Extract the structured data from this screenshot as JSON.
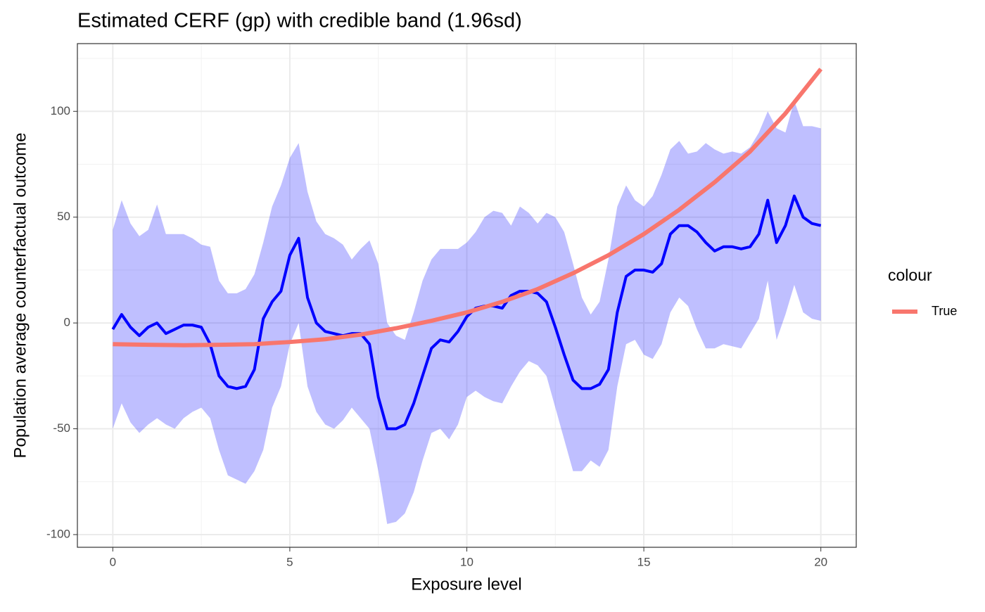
{
  "chart_data": {
    "type": "line",
    "title": "Estimated CERF (gp) with credible band (1.96sd)",
    "x_label": "Exposure level",
    "y_label": "Population average counterfactual outcome",
    "legend_title": "colour",
    "legend_position": "right",
    "grid": true,
    "xlim": [
      -1,
      21
    ],
    "xticks": [
      0,
      5,
      10,
      15,
      20
    ],
    "xminor": [
      2.5,
      7.5,
      12.5,
      17.5
    ],
    "ylim": [
      -106,
      132
    ],
    "yticks": [
      -100,
      -50,
      0,
      50,
      100
    ],
    "yminor": [
      -75,
      -25,
      25,
      75,
      125
    ],
    "band": {
      "color": "#0000ff",
      "x": [
        0,
        0.25,
        0.5,
        0.75,
        1,
        1.25,
        1.5,
        1.75,
        2,
        2.25,
        2.5,
        2.75,
        3,
        3.25,
        3.5,
        3.75,
        4,
        4.25,
        4.5,
        4.75,
        5,
        5.25,
        5.5,
        5.75,
        6,
        6.25,
        6.5,
        6.75,
        7,
        7.25,
        7.5,
        7.75,
        8,
        8.25,
        8.5,
        8.75,
        9,
        9.25,
        9.5,
        9.75,
        10,
        10.25,
        10.5,
        10.75,
        11,
        11.25,
        11.5,
        11.75,
        12,
        12.25,
        12.5,
        12.75,
        13,
        13.25,
        13.5,
        13.75,
        14,
        14.25,
        14.5,
        14.75,
        15,
        15.25,
        15.5,
        15.75,
        16,
        16.25,
        16.5,
        16.75,
        17,
        17.25,
        17.5,
        17.75,
        18,
        18.25,
        18.5,
        18.75,
        19,
        19.25,
        19.5,
        19.75,
        20
      ],
      "upper": [
        44,
        58,
        47,
        41,
        44,
        56,
        42,
        42,
        42,
        40,
        37,
        36,
        20,
        14,
        14,
        16,
        23,
        38,
        55,
        65,
        78,
        85,
        62,
        48,
        42,
        40,
        37,
        30,
        35,
        39,
        28,
        0,
        -6,
        -8,
        5,
        20,
        30,
        35,
        35,
        35,
        38,
        43,
        50,
        53,
        52,
        46,
        55,
        52,
        47,
        52,
        50,
        43,
        28,
        12,
        4,
        10,
        30,
        55,
        65,
        58,
        55,
        60,
        70,
        82,
        86,
        80,
        81,
        85,
        82,
        80,
        81,
        80,
        83,
        90,
        100,
        92,
        90,
        105,
        93,
        93,
        92
      ],
      "lower": [
        -50,
        -38,
        -47,
        -52,
        -48,
        -45,
        -48,
        -50,
        -45,
        -42,
        -40,
        -45,
        -60,
        -72,
        -74,
        -76,
        -70,
        -60,
        -40,
        -30,
        -10,
        0,
        -30,
        -42,
        -48,
        -50,
        -46,
        -40,
        -45,
        -50,
        -70,
        -95,
        -94,
        -90,
        -80,
        -65,
        -52,
        -50,
        -55,
        -48,
        -35,
        -32,
        -35,
        -37,
        -38,
        -30,
        -23,
        -18,
        -20,
        -25,
        -40,
        -55,
        -70,
        -70,
        -65,
        -68,
        -60,
        -30,
        -10,
        -8,
        -15,
        -17,
        -10,
        5,
        12,
        8,
        -3,
        -12,
        -12,
        -10,
        -11,
        -12,
        -5,
        2,
        20,
        -8,
        4,
        18,
        5,
        2,
        1
      ]
    },
    "estimate": {
      "color": "#0000ff",
      "values": [
        -3,
        4,
        -2,
        -6,
        -2,
        0,
        -5,
        -3,
        -1,
        -1,
        -2,
        -10,
        -25,
        -30,
        -31,
        -30,
        -22,
        2,
        10,
        15,
        32,
        40,
        12,
        0,
        -4,
        -5,
        -6,
        -5,
        -5,
        -10,
        -35,
        -50,
        -50,
        -48,
        -38,
        -25,
        -12,
        -8,
        -9,
        -4,
        3,
        7,
        8,
        8,
        7,
        13,
        15,
        15,
        14,
        10,
        -2,
        -15,
        -27,
        -31,
        -31,
        -29,
        -22,
        5,
        22,
        25,
        25,
        24,
        28,
        42,
        46,
        46,
        43,
        38,
        34,
        36,
        36,
        35,
        36,
        42,
        58,
        38,
        46,
        60,
        50,
        47,
        46
      ]
    },
    "series": [
      {
        "name": "True",
        "color": "#f8766d",
        "x": [
          0,
          1,
          2,
          3,
          4,
          5,
          6,
          7,
          8,
          9,
          10,
          11,
          12,
          13,
          14,
          15,
          16,
          17,
          18,
          19,
          20
        ],
        "values": [
          -10,
          -10.3,
          -10.5,
          -10.3,
          -10,
          -9,
          -7.7,
          -5.5,
          -2.5,
          1,
          5,
          10,
          16,
          23.5,
          32,
          42,
          53.5,
          66.5,
          81,
          99,
          120
        ]
      }
    ]
  }
}
